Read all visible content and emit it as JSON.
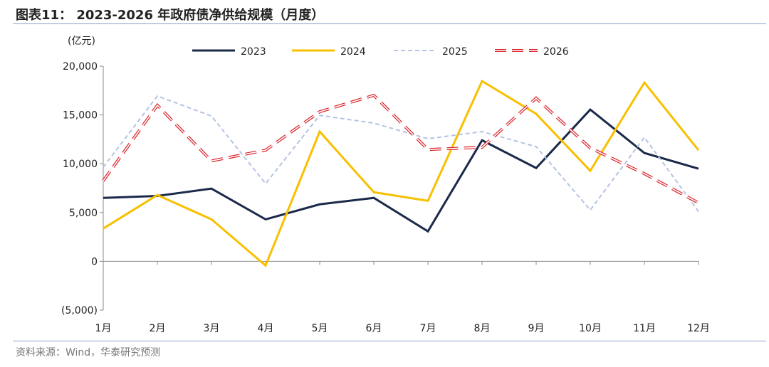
{
  "title": "图表11：  2023-2026 年政府债净供给规模（月度）",
  "source": "资料来源：Wind，华泰研究预测",
  "chart_data": {
    "type": "line",
    "ylabel": "(亿元)",
    "ylim": [
      -5000,
      20000
    ],
    "yticks": [
      -5000,
      0,
      5000,
      10000,
      15000,
      20000
    ],
    "ytick_labels": [
      "(5,000)",
      "0",
      "5,000",
      "10,000",
      "15,000",
      "20,000"
    ],
    "categories": [
      "1月",
      "2月",
      "3月",
      "4月",
      "5月",
      "6月",
      "7月",
      "8月",
      "9月",
      "10月",
      "11月",
      "12月"
    ],
    "legend": "top",
    "grid": false,
    "series": [
      {
        "name": "2023",
        "color": "#1b2a4a",
        "style": "solid",
        "values": [
          6500,
          6700,
          7450,
          4300,
          5840,
          6500,
          3070,
          12400,
          9560,
          15550,
          11100,
          9490
        ]
      },
      {
        "name": "2024",
        "color": "#f8c000",
        "style": "solid",
        "values": [
          3360,
          6790,
          4300,
          -440,
          13290,
          7080,
          6200,
          18470,
          15110,
          9270,
          18320,
          11390
        ]
      },
      {
        "name": "2025",
        "color": "#b4c3e2",
        "style": "dashed",
        "values": [
          9640,
          16940,
          14890,
          7960,
          14960,
          14160,
          12560,
          13290,
          11750,
          5260,
          12700,
          5110
        ]
      },
      {
        "name": "2026",
        "color": "#d9232a",
        "style": "double-dashed",
        "values": [
          8250,
          15990,
          10290,
          11390,
          15330,
          17010,
          11460,
          11680,
          16720,
          11610,
          8980,
          5990
        ]
      }
    ]
  }
}
